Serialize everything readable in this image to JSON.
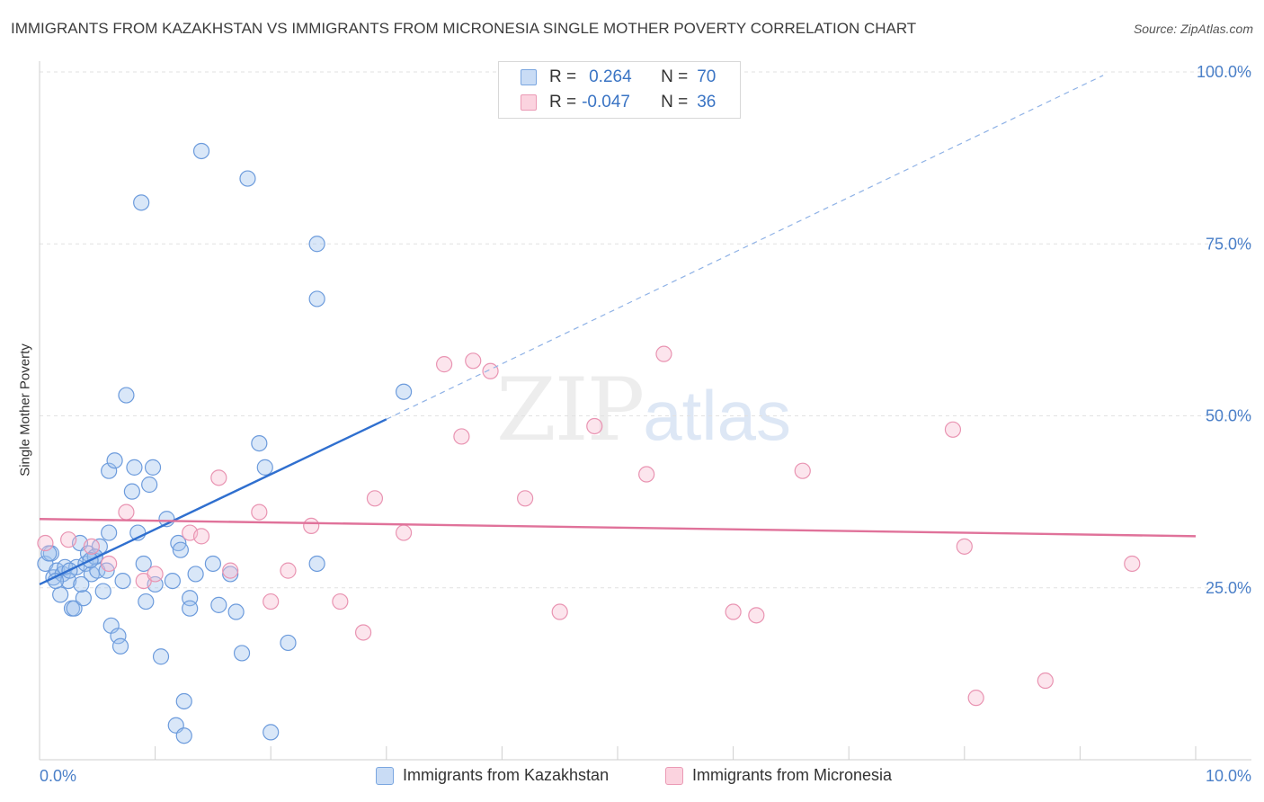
{
  "title": "IMMIGRANTS FROM KAZAKHSTAN VS IMMIGRANTS FROM MICRONESIA SINGLE MOTHER POVERTY CORRELATION CHART",
  "source": "Source: ZipAtlas.com",
  "watermark": {
    "zip": "ZIP",
    "atlas": "atlas"
  },
  "legend": [
    {
      "r_label": "R =",
      "r_value": "0.264",
      "n_label": "N =",
      "n_value": "70"
    },
    {
      "r_label": "R =",
      "r_value": "-0.047",
      "n_label": "N =",
      "n_value": "36"
    }
  ],
  "chart_data": {
    "type": "scatter",
    "title": "IMMIGRANTS FROM KAZAKHSTAN VS IMMIGRANTS FROM MICRONESIA SINGLE MOTHER POVERTY CORRELATION CHART",
    "xlabel": "",
    "ylabel": "Single Mother Poverty",
    "xlim": [
      0,
      10
    ],
    "ylim": [
      0,
      100
    ],
    "x_tick_labels": [
      "0.0%",
      "10.0%"
    ],
    "y_ticks": [
      25,
      50,
      75,
      100
    ],
    "y_tick_labels": [
      "25.0%",
      "50.0%",
      "75.0%",
      "100.0%"
    ],
    "grid": true,
    "legend_position": "top-center",
    "colors": {
      "kazakhstan": "#4a86d4",
      "micronesia": "#e57ca0"
    },
    "series": [
      {
        "name": "Immigrants from Kazakhstan",
        "color": "#4a86d4",
        "trend": {
          "x": [
            0.0,
            3.0
          ],
          "y": [
            25.5,
            49.5
          ],
          "dashed_x": [
            3.0,
            9.2
          ],
          "dashed_y": [
            49.5,
            99.5
          ]
        },
        "points": [
          [
            0.05,
            28.5
          ],
          [
            0.1,
            30
          ],
          [
            0.12,
            26.5
          ],
          [
            0.15,
            27.5
          ],
          [
            0.18,
            24
          ],
          [
            0.2,
            27
          ],
          [
            0.22,
            28
          ],
          [
            0.25,
            26
          ],
          [
            0.28,
            22
          ],
          [
            0.3,
            22
          ],
          [
            0.32,
            28
          ],
          [
            0.35,
            31.5
          ],
          [
            0.38,
            23.5
          ],
          [
            0.4,
            28.5
          ],
          [
            0.42,
            30
          ],
          [
            0.45,
            27
          ],
          [
            0.48,
            29.5
          ],
          [
            0.5,
            27.5
          ],
          [
            0.52,
            31
          ],
          [
            0.55,
            24.5
          ],
          [
            0.48,
            29.5
          ],
          [
            0.58,
            27.5
          ],
          [
            0.6,
            42
          ],
          [
            0.62,
            19.5
          ],
          [
            0.65,
            43.5
          ],
          [
            0.68,
            18
          ],
          [
            0.7,
            16.5
          ],
          [
            0.75,
            53
          ],
          [
            0.8,
            39
          ],
          [
            0.82,
            42.5
          ],
          [
            0.85,
            33
          ],
          [
            0.88,
            81
          ],
          [
            0.9,
            28.5
          ],
          [
            0.92,
            23
          ],
          [
            0.95,
            40
          ],
          [
            0.98,
            42.5
          ],
          [
            1.0,
            25.5
          ],
          [
            1.05,
            15
          ],
          [
            1.1,
            35
          ],
          [
            1.15,
            26
          ],
          [
            1.18,
            5
          ],
          [
            1.2,
            31.5
          ],
          [
            1.22,
            30.5
          ],
          [
            1.25,
            3.5
          ],
          [
            1.25,
            8.5
          ],
          [
            1.3,
            23.5
          ],
          [
            1.3,
            22
          ],
          [
            1.35,
            27
          ],
          [
            1.4,
            88.5
          ],
          [
            1.5,
            28.5
          ],
          [
            1.55,
            22.5
          ],
          [
            1.65,
            27
          ],
          [
            1.7,
            21.5
          ],
          [
            1.75,
            15.5
          ],
          [
            1.8,
            84.5
          ],
          [
            1.9,
            46
          ],
          [
            1.95,
            42.5
          ],
          [
            2.0,
            4
          ],
          [
            2.15,
            17
          ],
          [
            2.4,
            75
          ],
          [
            2.4,
            67
          ],
          [
            2.4,
            28.5
          ],
          [
            3.15,
            53.5
          ],
          [
            0.08,
            30
          ],
          [
            0.14,
            26
          ],
          [
            0.26,
            27.5
          ],
          [
            0.36,
            25.5
          ],
          [
            0.44,
            29
          ],
          [
            0.6,
            33
          ],
          [
            0.72,
            26
          ]
        ]
      },
      {
        "name": "Immigrants from Micronesia",
        "color": "#e57ca0",
        "trend": {
          "x": [
            0.0,
            10.0
          ],
          "y": [
            35,
            32.5
          ]
        },
        "points": [
          [
            0.05,
            31.5
          ],
          [
            0.25,
            32
          ],
          [
            0.45,
            31
          ],
          [
            0.6,
            28.5
          ],
          [
            0.75,
            36
          ],
          [
            0.9,
            26
          ],
          [
            1.0,
            27
          ],
          [
            1.3,
            33
          ],
          [
            1.4,
            32.5
          ],
          [
            1.55,
            41
          ],
          [
            1.65,
            27.5
          ],
          [
            1.9,
            36
          ],
          [
            2.0,
            23
          ],
          [
            2.15,
            27.5
          ],
          [
            2.35,
            34
          ],
          [
            2.6,
            23
          ],
          [
            2.8,
            18.5
          ],
          [
            2.9,
            38
          ],
          [
            3.15,
            33
          ],
          [
            3.5,
            57.5
          ],
          [
            3.65,
            47
          ],
          [
            3.75,
            58
          ],
          [
            3.9,
            56.5
          ],
          [
            4.2,
            38
          ],
          [
            4.5,
            21.5
          ],
          [
            4.8,
            48.5
          ],
          [
            5.25,
            41.5
          ],
          [
            5.4,
            59
          ],
          [
            6.0,
            21.5
          ],
          [
            6.2,
            21
          ],
          [
            6.6,
            42
          ],
          [
            7.9,
            48
          ],
          [
            8.0,
            31
          ],
          [
            8.1,
            9
          ],
          [
            8.7,
            11.5
          ],
          [
            9.45,
            28.5
          ]
        ]
      }
    ]
  }
}
